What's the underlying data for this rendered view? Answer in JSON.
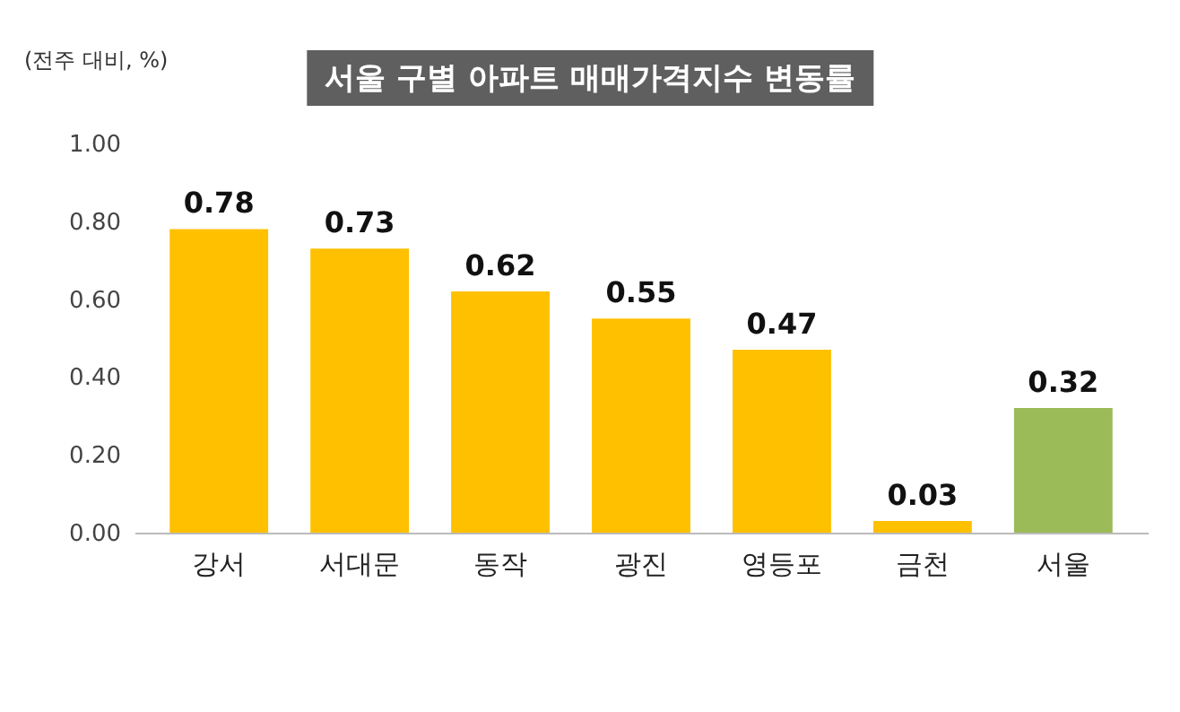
{
  "chart_data": {
    "type": "bar",
    "title": "서울 구별 아파트 매매가격지수 변동률",
    "ylabel": "(전주 대비, %)",
    "categories": [
      "강서",
      "서대문",
      "동작",
      "광진",
      "영등포",
      "금천",
      "서울"
    ],
    "values": [
      0.78,
      0.73,
      0.62,
      0.55,
      0.47,
      0.03,
      0.32
    ],
    "colors": [
      "#ffc000",
      "#ffc000",
      "#ffc000",
      "#ffc000",
      "#ffc000",
      "#ffc000",
      "#9bbb59"
    ],
    "ylim": [
      0,
      1
    ],
    "yticks": [
      {
        "value": 0,
        "label": "0.00"
      },
      {
        "value": 0.2,
        "label": "0.20"
      },
      {
        "value": 0.4,
        "label": "0.40"
      },
      {
        "value": 0.6,
        "label": "0.60"
      },
      {
        "value": 0.8,
        "label": "0.80"
      },
      {
        "value": 1,
        "label": "1.00"
      }
    ],
    "data_labels": true
  }
}
